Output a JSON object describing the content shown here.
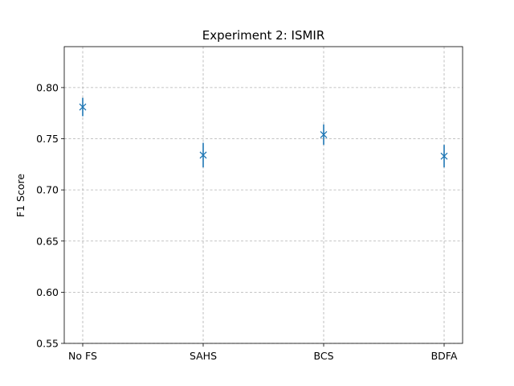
{
  "chart_data": {
    "type": "scatter",
    "title": "Experiment 2: ISMIR",
    "xlabel": "",
    "ylabel": "F1 Score",
    "categories": [
      "No FS",
      "SAHS",
      "BCS",
      "BDFA"
    ],
    "series": [
      {
        "values": [
          0.781,
          0.734,
          0.754,
          0.733
        ],
        "errors": [
          0.009,
          0.012,
          0.01,
          0.011
        ],
        "marker": "x"
      }
    ],
    "ylim": [
      0.55,
      0.84
    ],
    "yticks": [
      0.55,
      0.6,
      0.65,
      0.7,
      0.75,
      0.8
    ],
    "ytick_labels": [
      "0.55",
      "0.60",
      "0.65",
      "0.70",
      "0.75",
      "0.80"
    ],
    "grid": true,
    "color": "#1f77b4"
  }
}
